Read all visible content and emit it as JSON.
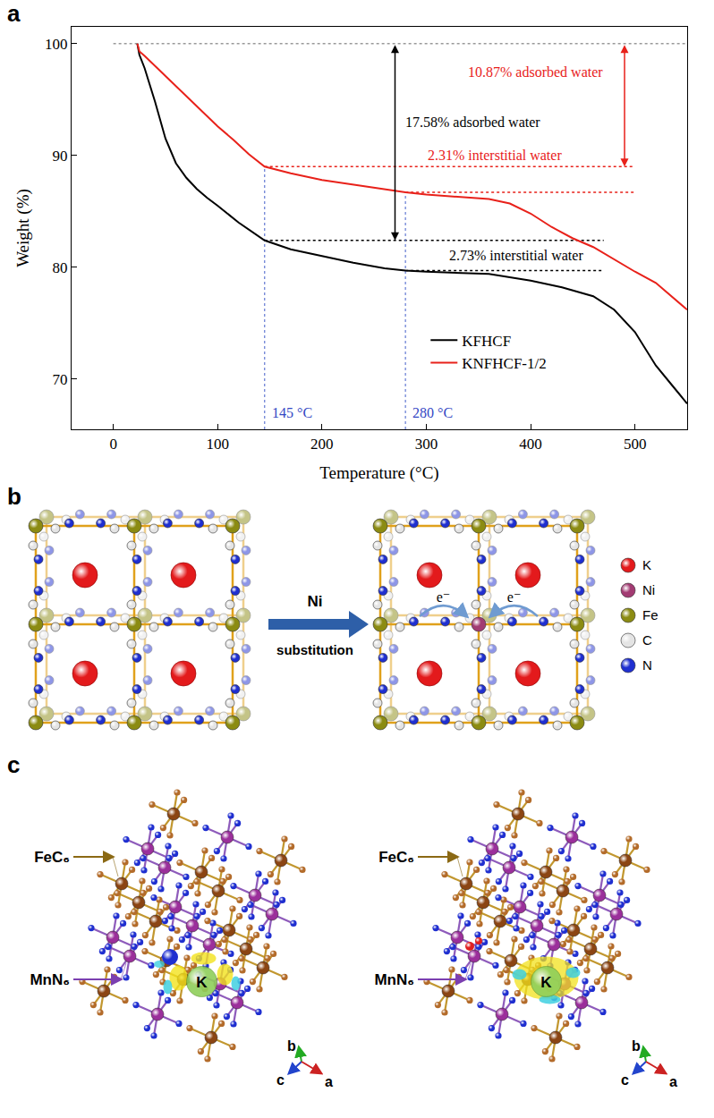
{
  "chart_data": {
    "panel_label": "a",
    "type": "line",
    "x_label": "Temperature (°C)",
    "y_label": "Weight (%)",
    "xlim": [
      -40,
      550
    ],
    "ylim": [
      65.5,
      101.5
    ],
    "xticks": [
      0,
      100,
      200,
      300,
      400,
      500
    ],
    "yticks": [
      70,
      80,
      90,
      100
    ],
    "grid": false,
    "legend": "lower center",
    "series": [
      {
        "name": "KFHCF",
        "color": "#000000",
        "line_style": "solid",
        "x": [
          23,
          25,
          30,
          40,
          50,
          60,
          70,
          80,
          90,
          100,
          120,
          145,
          170,
          200,
          230,
          260,
          280,
          300,
          330,
          360,
          400,
          430,
          460,
          480,
          500,
          520,
          535,
          550
        ],
        "values": [
          100,
          99,
          97.8,
          94.8,
          91.5,
          89.3,
          88,
          87,
          86.2,
          85.5,
          84,
          82.4,
          81.6,
          81,
          80.4,
          79.9,
          79.7,
          79.6,
          79.5,
          79.4,
          78.8,
          78.2,
          77.4,
          76.2,
          74.2,
          71.2,
          69.5,
          67.8
        ]
      },
      {
        "name": "KNFHCF-1/2",
        "color": "#e8211a",
        "line_style": "solid",
        "x": [
          23,
          25,
          30,
          40,
          50,
          60,
          75,
          90,
          100,
          115,
          130,
          145,
          170,
          200,
          230,
          260,
          280,
          300,
          330,
          360,
          380,
          400,
          420,
          440,
          460,
          480,
          500,
          520,
          535,
          550
        ],
        "values": [
          100,
          99.3,
          98.9,
          98,
          97.1,
          96.2,
          94.8,
          93.5,
          92.6,
          91.4,
          90.1,
          89,
          88.4,
          87.8,
          87.4,
          87,
          86.7,
          86.5,
          86.3,
          86.1,
          85.7,
          84.8,
          83.6,
          82.6,
          81.8,
          80.7,
          79.6,
          78.6,
          77.4,
          76.2
        ]
      }
    ],
    "reference_lines": [
      {
        "x": [
          0,
          550
        ],
        "y": [
          100,
          100
        ],
        "color": "#999999",
        "line_style": "dotted"
      },
      {
        "x": [
          145,
          500
        ],
        "y": [
          89,
          89
        ],
        "color": "#e8211a",
        "line_style": "dotted"
      },
      {
        "x": [
          280,
          500
        ],
        "y": [
          86.7,
          86.7
        ],
        "color": "#e8211a",
        "line_style": "dotted"
      },
      {
        "x": [
          145,
          470
        ],
        "y": [
          82.4,
          82.4
        ],
        "color": "#000000",
        "line_style": "dotted"
      },
      {
        "x": [
          280,
          470
        ],
        "y": [
          79.7,
          79.7
        ],
        "color": "#000000",
        "line_style": "dotted"
      },
      {
        "x": [
          145,
          145
        ],
        "y": [
          65.5,
          89
        ],
        "color": "#6f83d6",
        "line_style": "dotted"
      },
      {
        "x": [
          280,
          280
        ],
        "y": [
          65.5,
          86.7
        ],
        "color": "#6f83d6",
        "line_style": "dotted"
      }
    ],
    "annotations": [
      {
        "text": "17.58% adsorbed water",
        "x": 278,
        "y": 93,
        "color": "#000000"
      },
      {
        "text": "10.87% adsorbed water",
        "x": 338,
        "y": 97.5,
        "color": "#e8211a"
      },
      {
        "text": "2.31% interstitial water",
        "x": 300,
        "y": 90,
        "color": "#e8211a"
      },
      {
        "text": "2.73% interstitial water",
        "x": 320,
        "y": 81.05,
        "color": "#000000"
      },
      {
        "text": "145 °C",
        "x": 150,
        "y": 67,
        "color": "#3347c4"
      },
      {
        "text": "280 °C",
        "x": 285,
        "y": 67,
        "color": "#3347c4"
      }
    ],
    "arrows": [
      {
        "x": 270,
        "y": [
          100,
          82.4
        ],
        "color": "#000000"
      },
      {
        "x": 490,
        "y": [
          100,
          89
        ],
        "color": "#e8211a"
      }
    ]
  },
  "panel_b": {
    "panel_label": "b",
    "arrow_text": "Ni",
    "arrow_subtext": "substitution",
    "electron_label": "e⁻",
    "legend": [
      {
        "label": "K",
        "color": "#e31a1c"
      },
      {
        "label": "Ni",
        "color": "#a23b72"
      },
      {
        "label": "Fe",
        "color": "#8b8b12"
      },
      {
        "label": "C",
        "color": "#e4e4e4"
      },
      {
        "label": "N",
        "color": "#1f2fd0"
      }
    ]
  },
  "panel_c": {
    "panel_label": "c",
    "fe_label": "FeC₆",
    "mn_label": "MnN₆",
    "k_label": "K",
    "axis_labels": [
      "b",
      "c",
      "a"
    ]
  }
}
